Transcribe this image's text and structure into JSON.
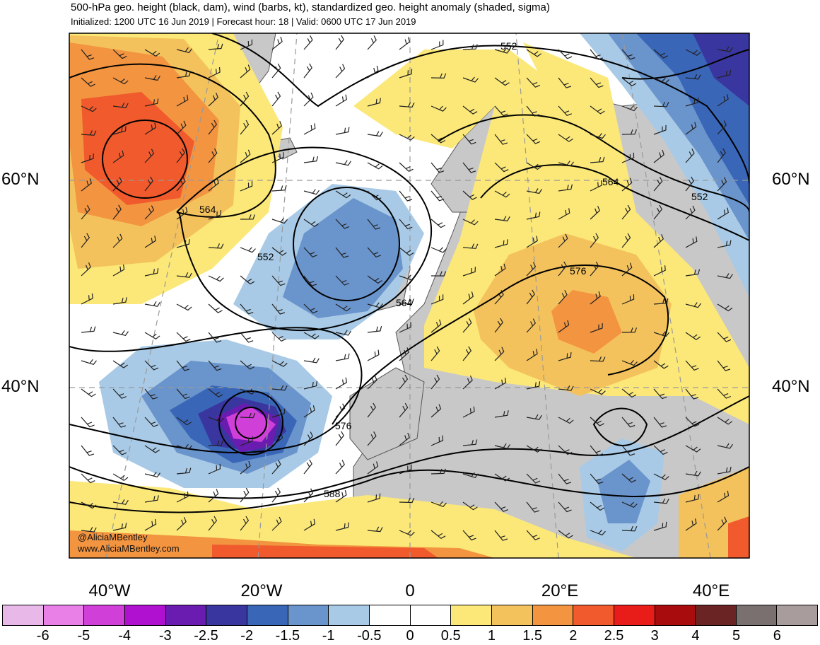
{
  "header": {
    "title": "500-hPa geo. height (black, dam), wind (barbs, kt), standardized geo. height anomaly (shaded, sigma)",
    "subtitle": "Initialized: 1200 UTC 16 Jun 2019 | Forecast hour: 18 | Valid: 0600 UTC 17 Jun 2019"
  },
  "map": {
    "lat_labels": [
      "60°N",
      "40°N"
    ],
    "lon_labels": [
      "40°W",
      "20°W",
      "0",
      "20°E",
      "40°E"
    ],
    "contour_labels": [
      "552",
      "564",
      "564",
      "552",
      "552",
      "564",
      "576",
      "576",
      "588"
    ]
  },
  "credit": {
    "handle": "@AliciaMBentley",
    "website": "www.AliciaMBentley.com"
  },
  "colorbar": {
    "colors": [
      "#e8b8e8",
      "#e880e8",
      "#d040d8",
      "#b010d0",
      "#6a1cb0",
      "#3a36a0",
      "#3a66b8",
      "#6a94cc",
      "#a8cae6",
      "#ffffff",
      "#ffffff",
      "#fbe878",
      "#f4c25c",
      "#f29440",
      "#f05a2c",
      "#e81c18",
      "#a80c0c",
      "#6a2424",
      "#7a7070",
      "#a89c9c"
    ],
    "ticks": [
      "-6",
      "-5",
      "-4",
      "-3",
      "-2.5",
      "-2",
      "-1.5",
      "-1",
      "-0.5",
      "0",
      "0.5",
      "1",
      "1.5",
      "2",
      "2.5",
      "3",
      "4",
      "5",
      "6"
    ]
  }
}
